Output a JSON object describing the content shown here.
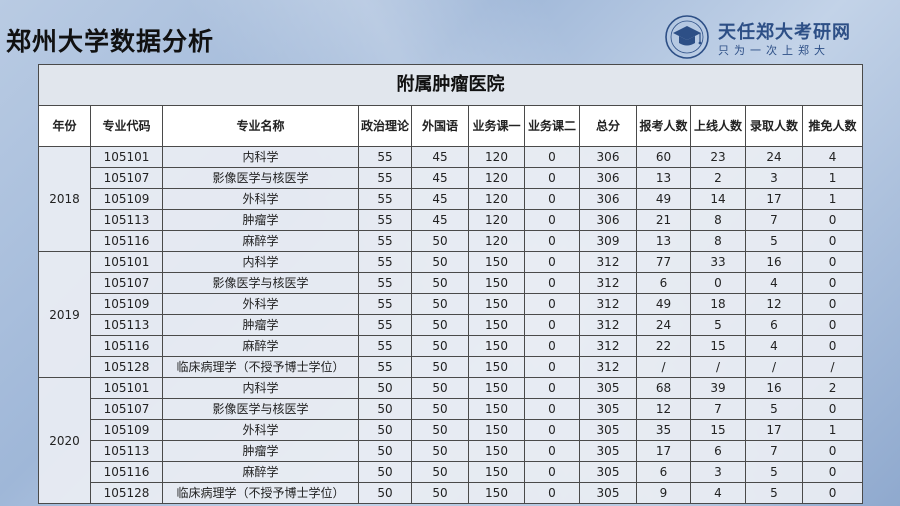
{
  "page_title": "郑州大学数据分析",
  "logo": {
    "name": "天任郑大考研网",
    "slogan": "只为一次上郑大",
    "emblem_icon": "graduation-cap-seal-icon"
  },
  "table": {
    "hospital": "附属肿瘤医院",
    "columns": [
      "年份",
      "专业代码",
      "专业名称",
      "政治理论",
      "外国语",
      "业务课一",
      "业务课二",
      "总分",
      "报考人数",
      "上线人数",
      "录取人数",
      "推免人数"
    ],
    "groups": [
      {
        "year": "2018",
        "rows": [
          [
            "105101",
            "内科学",
            "55",
            "45",
            "120",
            "0",
            "306",
            "60",
            "23",
            "24",
            "4"
          ],
          [
            "105107",
            "影像医学与核医学",
            "55",
            "45",
            "120",
            "0",
            "306",
            "13",
            "2",
            "3",
            "1"
          ],
          [
            "105109",
            "外科学",
            "55",
            "45",
            "120",
            "0",
            "306",
            "49",
            "14",
            "17",
            "1"
          ],
          [
            "105113",
            "肿瘤学",
            "55",
            "45",
            "120",
            "0",
            "306",
            "21",
            "8",
            "7",
            "0"
          ],
          [
            "105116",
            "麻醉学",
            "55",
            "50",
            "120",
            "0",
            "309",
            "13",
            "8",
            "5",
            "0"
          ]
        ]
      },
      {
        "year": "2019",
        "rows": [
          [
            "105101",
            "内科学",
            "55",
            "50",
            "150",
            "0",
            "312",
            "77",
            "33",
            "16",
            "0"
          ],
          [
            "105107",
            "影像医学与核医学",
            "55",
            "50",
            "150",
            "0",
            "312",
            "6",
            "0",
            "4",
            "0"
          ],
          [
            "105109",
            "外科学",
            "55",
            "50",
            "150",
            "0",
            "312",
            "49",
            "18",
            "12",
            "0"
          ],
          [
            "105113",
            "肿瘤学",
            "55",
            "50",
            "150",
            "0",
            "312",
            "24",
            "5",
            "6",
            "0"
          ],
          [
            "105116",
            "麻醉学",
            "55",
            "50",
            "150",
            "0",
            "312",
            "22",
            "15",
            "4",
            "0"
          ],
          [
            "105128",
            "临床病理学（不授予博士学位）",
            "55",
            "50",
            "150",
            "0",
            "312",
            "/",
            "/",
            "/",
            "/"
          ]
        ]
      },
      {
        "year": "2020",
        "rows": [
          [
            "105101",
            "内科学",
            "50",
            "50",
            "150",
            "0",
            "305",
            "68",
            "39",
            "16",
            "2"
          ],
          [
            "105107",
            "影像医学与核医学",
            "50",
            "50",
            "150",
            "0",
            "305",
            "12",
            "7",
            "5",
            "0"
          ],
          [
            "105109",
            "外科学",
            "50",
            "50",
            "150",
            "0",
            "305",
            "35",
            "15",
            "17",
            "1"
          ],
          [
            "105113",
            "肿瘤学",
            "50",
            "50",
            "150",
            "0",
            "305",
            "17",
            "6",
            "7",
            "0"
          ],
          [
            "105116",
            "麻醉学",
            "50",
            "50",
            "150",
            "0",
            "305",
            "6",
            "3",
            "5",
            "0"
          ],
          [
            "105128",
            "临床病理学（不授予博士学位）",
            "50",
            "50",
            "150",
            "0",
            "305",
            "9",
            "4",
            "5",
            "0"
          ]
        ]
      }
    ]
  }
}
